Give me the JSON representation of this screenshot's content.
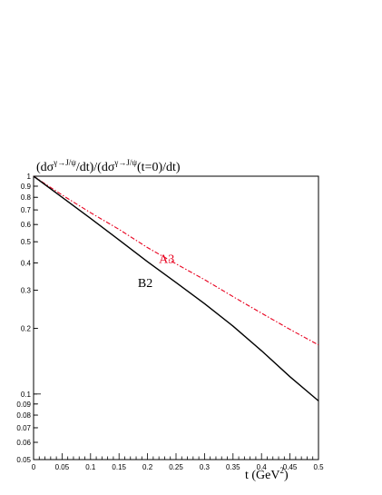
{
  "chart_data": {
    "type": "line",
    "ylabel_parts": {
      "open": "(dσ",
      "sup1": "γ→J/ψ",
      "mid": "/dt)/(dσ",
      "sup2": "γ→J/ψ",
      "close": "(t=0)/dt)"
    },
    "xlabel_parts": {
      "main": "t  (GeV",
      "sup": "2",
      "close": ")"
    },
    "xlim": [
      0,
      0.5
    ],
    "ylim": [
      0.05,
      1
    ],
    "yscale": "log",
    "x_ticks": [
      "0",
      "0.05",
      "0.1",
      "0.15",
      "0.2",
      "0.25",
      "0.3",
      "0.35",
      "0.4",
      "0.45",
      "0.5"
    ],
    "y_ticks": [
      {
        "value": 1,
        "label": "1"
      },
      {
        "value": 0.9,
        "label": "0.9"
      },
      {
        "value": 0.8,
        "label": "0.8"
      },
      {
        "value": 0.7,
        "label": "0.7"
      },
      {
        "value": 0.6,
        "label": "0.6"
      },
      {
        "value": 0.5,
        "label": "0.5"
      },
      {
        "value": 0.4,
        "label": "0.4"
      },
      {
        "value": 0.3,
        "label": "0.3"
      },
      {
        "value": 0.2,
        "label": "0.2"
      },
      {
        "value": 0.1,
        "label": "0.1"
      },
      {
        "value": 0.09,
        "label": "0.09"
      },
      {
        "value": 0.08,
        "label": "0.08"
      },
      {
        "value": 0.07,
        "label": "0.07"
      },
      {
        "value": 0.06,
        "label": "0.06"
      },
      {
        "value": 0.05,
        "label": "0.05"
      }
    ],
    "series": [
      {
        "name": "A3",
        "color": "#e8001e",
        "style": "dashdot",
        "label_at": [
          0.22,
          0.4
        ],
        "x": [
          0,
          0.05,
          0.1,
          0.15,
          0.2,
          0.25,
          0.3,
          0.35,
          0.4,
          0.45,
          0.5
        ],
        "y": [
          1.0,
          0.82,
          0.68,
          0.57,
          0.47,
          0.396,
          0.335,
          0.28,
          0.235,
          0.198,
          0.168
        ]
      },
      {
        "name": "B2",
        "color": "#000000",
        "style": "solid",
        "label_at": [
          0.183,
          0.31
        ],
        "x": [
          0,
          0.05,
          0.1,
          0.15,
          0.2,
          0.25,
          0.3,
          0.35,
          0.4,
          0.45,
          0.5
        ],
        "y": [
          1.0,
          0.8,
          0.64,
          0.51,
          0.405,
          0.325,
          0.26,
          0.205,
          0.158,
          0.12,
          0.093
        ]
      }
    ],
    "grid": false,
    "legend": "none"
  }
}
